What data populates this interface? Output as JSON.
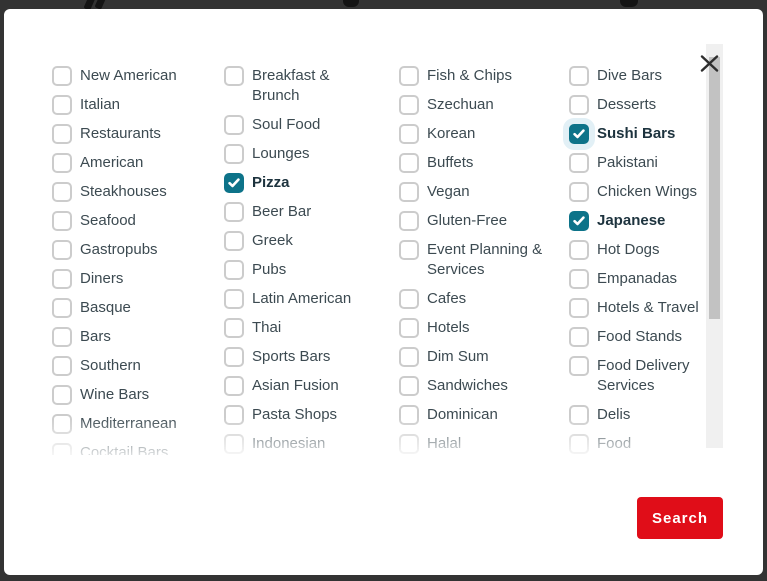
{
  "modal": {
    "search_button_label": "Search",
    "icons": {
      "close": "x-icon",
      "checkmark": "checkmark-icon"
    },
    "colors": {
      "backdrop": "#333333",
      "modal_background": "#ffffff",
      "checked_checkbox": "#0d7389",
      "checkbox_border": "#cccccc",
      "focus_halo": "#e2f0f6",
      "label_text": "#3c4a51",
      "checked_label_text": "#1d333e",
      "search_button_bg": "#e00d18",
      "search_button_text": "#ffffff",
      "scrollbar_track": "#f0f0f0",
      "scrollbar_thumb": "#c2c2c2"
    },
    "columns": [
      {
        "items": [
          {
            "label": "New American",
            "checked": false
          },
          {
            "label": "Italian",
            "checked": false
          },
          {
            "label": "Restaurants",
            "checked": false
          },
          {
            "label": "American",
            "checked": false
          },
          {
            "label": "Steakhouses",
            "checked": false
          },
          {
            "label": "Seafood",
            "checked": false
          },
          {
            "label": "Gastropubs",
            "checked": false
          },
          {
            "label": "Diners",
            "checked": false
          },
          {
            "label": "Basque",
            "checked": false
          },
          {
            "label": "Bars",
            "checked": false
          },
          {
            "label": "Southern",
            "checked": false
          },
          {
            "label": "Wine Bars",
            "checked": false
          },
          {
            "label": "Mediterranean",
            "checked": false
          },
          {
            "label": "Cocktail Bars",
            "checked": false
          }
        ]
      },
      {
        "items": [
          {
            "label": "Breakfast & Brunch",
            "checked": false
          },
          {
            "label": "Soul Food",
            "checked": false
          },
          {
            "label": "Lounges",
            "checked": false
          },
          {
            "label": "Pizza",
            "checked": true
          },
          {
            "label": "Beer Bar",
            "checked": false
          },
          {
            "label": "Greek",
            "checked": false
          },
          {
            "label": "Pubs",
            "checked": false
          },
          {
            "label": "Latin American",
            "checked": false
          },
          {
            "label": "Thai",
            "checked": false
          },
          {
            "label": "Sports Bars",
            "checked": false
          },
          {
            "label": "Asian Fusion",
            "checked": false
          },
          {
            "label": "Pasta Shops",
            "checked": false
          },
          {
            "label": "Indonesian",
            "checked": false
          }
        ]
      },
      {
        "items": [
          {
            "label": "Fish & Chips",
            "checked": false
          },
          {
            "label": "Szechuan",
            "checked": false
          },
          {
            "label": "Korean",
            "checked": false
          },
          {
            "label": "Buffets",
            "checked": false
          },
          {
            "label": "Vegan",
            "checked": false
          },
          {
            "label": "Gluten-Free",
            "checked": false
          },
          {
            "label": "Event Planning & Services",
            "checked": false
          },
          {
            "label": "Cafes",
            "checked": false
          },
          {
            "label": "Hotels",
            "checked": false
          },
          {
            "label": "Dim Sum",
            "checked": false
          },
          {
            "label": "Sandwiches",
            "checked": false
          },
          {
            "label": "Dominican",
            "checked": false
          },
          {
            "label": "Halal",
            "checked": false
          }
        ]
      },
      {
        "items": [
          {
            "label": "Dive Bars",
            "checked": false
          },
          {
            "label": "Desserts",
            "checked": false
          },
          {
            "label": "Sushi Bars",
            "checked": true,
            "focused": true
          },
          {
            "label": "Pakistani",
            "checked": false
          },
          {
            "label": "Chicken Wings",
            "checked": false
          },
          {
            "label": "Japanese",
            "checked": true
          },
          {
            "label": "Hot Dogs",
            "checked": false
          },
          {
            "label": "Empanadas",
            "checked": false
          },
          {
            "label": "Hotels & Travel",
            "checked": false
          },
          {
            "label": "Food Stands",
            "checked": false
          },
          {
            "label": "Food Delivery Services",
            "checked": false
          },
          {
            "label": "Delis",
            "checked": false
          },
          {
            "label": "Food",
            "checked": false
          }
        ]
      }
    ]
  }
}
